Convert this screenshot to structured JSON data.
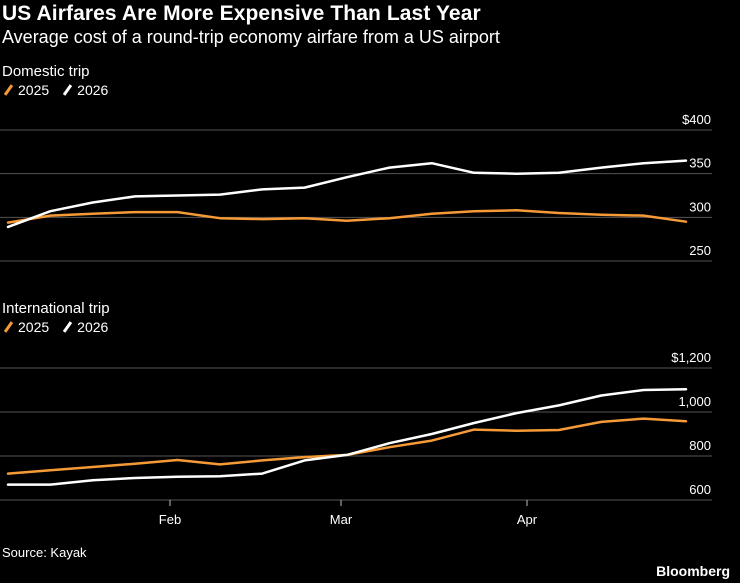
{
  "header": {
    "title": "US Airfares Are More Expensive Than Last Year",
    "subtitle": "Average cost of a round-trip economy airfare from a US airport"
  },
  "footer": {
    "source": "Source: Kayak",
    "brand": "Bloomberg"
  },
  "colors": {
    "series_2025": "#f59a36",
    "series_2026": "#ffffff",
    "grid": "#555555",
    "background": "#000000"
  },
  "chart_data": [
    {
      "type": "line",
      "title": "Domestic trip",
      "x_tick_labels": [
        "Feb",
        "Mar",
        "Apr"
      ],
      "ylim": [
        250,
        400
      ],
      "y_ticks": [
        250,
        300,
        350,
        400
      ],
      "y_tick_labels": [
        "250",
        "300",
        "350",
        "$400"
      ],
      "grid": true,
      "legend": "top-left",
      "series": [
        {
          "name": "2025",
          "color": "#f59a36",
          "values": [
            294,
            302,
            304,
            306,
            306,
            299,
            298,
            299,
            296,
            299,
            304,
            307,
            308,
            305,
            303,
            302,
            295
          ]
        },
        {
          "name": "2026",
          "color": "#ffffff",
          "values": [
            289,
            307,
            317,
            324,
            325,
            326,
            332,
            334,
            346,
            357,
            362,
            351,
            350,
            351,
            357,
            362,
            365
          ]
        }
      ]
    },
    {
      "type": "line",
      "title": "International trip",
      "x_tick_labels": [
        "Feb",
        "Mar",
        "Apr"
      ],
      "ylim": [
        600,
        1200
      ],
      "y_ticks": [
        600,
        800,
        1000,
        1200
      ],
      "y_tick_labels": [
        "600",
        "800",
        "1,000",
        "$1,200"
      ],
      "grid": true,
      "legend": "top-left",
      "series": [
        {
          "name": "2025",
          "color": "#f59a36",
          "values": [
            720,
            735,
            750,
            765,
            782,
            762,
            780,
            795,
            805,
            840,
            870,
            920,
            915,
            918,
            955,
            970,
            958
          ]
        },
        {
          "name": "2026",
          "color": "#ffffff",
          "values": [
            670,
            670,
            690,
            700,
            706,
            708,
            720,
            780,
            805,
            858,
            900,
            950,
            995,
            1030,
            1075,
            1100,
            1103
          ]
        }
      ]
    }
  ]
}
